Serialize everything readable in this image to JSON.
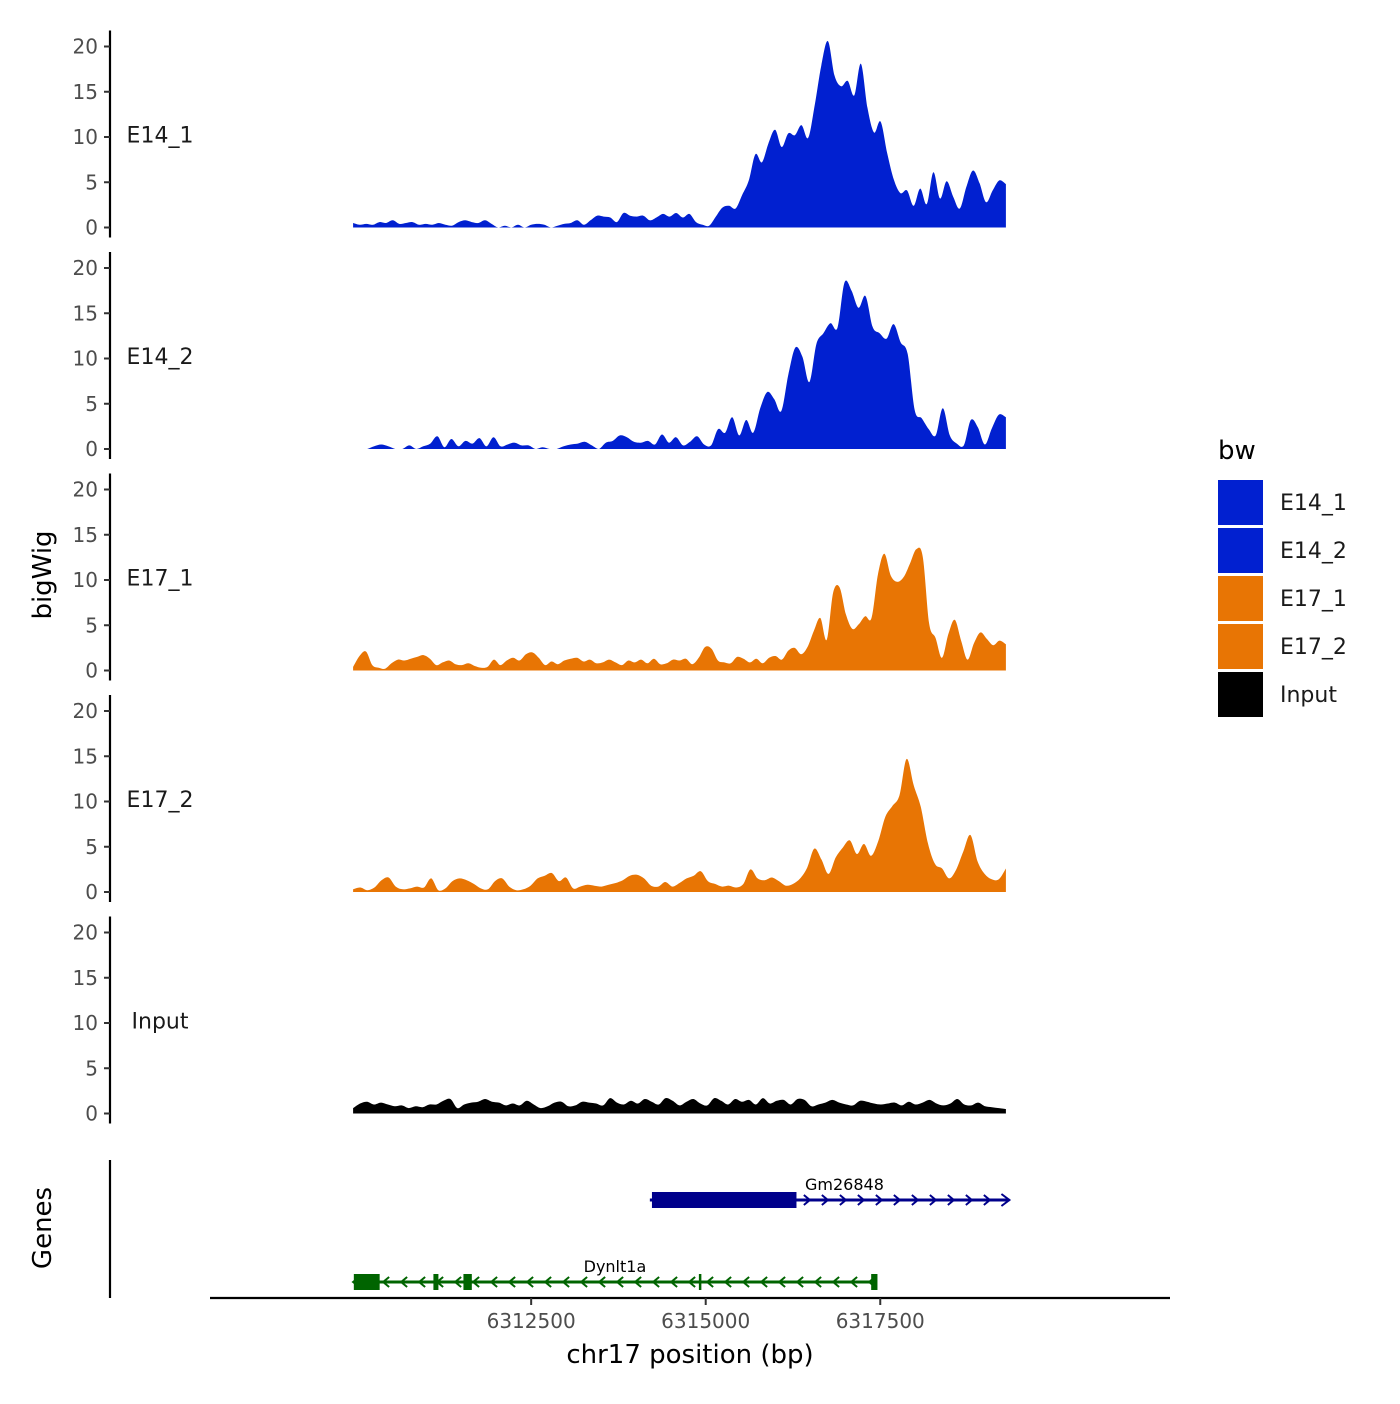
{
  "chart_data": {
    "type": "area",
    "title": "",
    "xlabel": "chr17 position (bp)",
    "ylabel": "bigWig",
    "gene_panel_label": "Genes",
    "x_range": [
      6309950,
      6319300
    ],
    "xlim": [
      6307900,
      6321650
    ],
    "x_ticks": [
      6312500,
      6315000,
      6317500
    ],
    "x_tick_labels": [
      "6312500",
      "6315000",
      "6317500"
    ],
    "ylim": [
      0,
      22
    ],
    "y_ticks": [
      0,
      5,
      10,
      15,
      20
    ],
    "y_tick_labels": [
      "0",
      "5",
      "10",
      "15",
      "20"
    ],
    "legend": {
      "title": "bw",
      "entries": [
        {
          "label": "E14_1",
          "color": "#0120D0"
        },
        {
          "label": "E14_2",
          "color": "#0120D0"
        },
        {
          "label": "E17_1",
          "color": "#E87504"
        },
        {
          "label": "E17_2",
          "color": "#E87504"
        },
        {
          "label": "Input",
          "color": "#000000"
        }
      ]
    },
    "series": [
      {
        "name": "E14_1",
        "label": "E14_1",
        "color": "#0120D0",
        "values": [
          0.5,
          0.3,
          0.4,
          0.3,
          0.6,
          0.5,
          0.8,
          0.4,
          0.5,
          0.6,
          0.3,
          0.4,
          0.3,
          0.5,
          0.3,
          0.2,
          0.6,
          0.8,
          0.6,
          0.5,
          0.8,
          0.4,
          0,
          0.2,
          0,
          0.3,
          0,
          0.3,
          0.4,
          0.3,
          0,
          0.2,
          0.4,
          0.5,
          0.8,
          0.3,
          0.8,
          1.3,
          1.2,
          1.1,
          0.6,
          1.6,
          1.3,
          1.2,
          1.3,
          0.8,
          1.1,
          1.5,
          1.2,
          1.6,
          1.1,
          1.5,
          0.6,
          0.3,
          0.2,
          1.2,
          2.2,
          2.4,
          2.1,
          3.6,
          5.2,
          8.1,
          7.2,
          9.3,
          10.8,
          8.9,
          10.4,
          10.2,
          11.3,
          9.9,
          13.5,
          17.9,
          20.6,
          16.8,
          15.6,
          16.2,
          14.6,
          18.1,
          13.2,
          10.5,
          11.7,
          8.2,
          5.3,
          3.8,
          4.1,
          2.4,
          4.3,
          2.6,
          6.1,
          3.2,
          5.1,
          3.4,
          2.1,
          4.5,
          6.3,
          4.9,
          2.8,
          4.1,
          5.2,
          4.8
        ]
      },
      {
        "name": "E14_2",
        "label": "E14_2",
        "color": "#0120D0",
        "values": [
          0,
          0,
          0,
          0.3,
          0.5,
          0.3,
          0,
          0,
          0.4,
          0,
          0.3,
          0.6,
          1.4,
          0.2,
          1.1,
          0.3,
          0.9,
          0.6,
          1.2,
          0.3,
          1.3,
          0.3,
          0.5,
          0.7,
          0.4,
          0.4,
          0,
          0.2,
          0,
          0,
          0.3,
          0.5,
          0.6,
          0.8,
          0.4,
          0,
          0.7,
          0.9,
          1.5,
          1.3,
          0.8,
          0.7,
          0.9,
          0.5,
          1.6,
          0.7,
          1.3,
          0.4,
          0.8,
          1.4,
          0.5,
          0.4,
          2.2,
          1.8,
          3.5,
          1.5,
          3.2,
          1.8,
          4.5,
          6.3,
          5.5,
          4.2,
          8.2,
          11.2,
          10.2,
          7.4,
          11.6,
          12.8,
          13.9,
          13.4,
          18.4,
          17.5,
          15.6,
          16.9,
          13.5,
          12.8,
          12.2,
          13.8,
          11.8,
          10.5,
          4.3,
          3.4,
          2.2,
          1.5,
          4.5,
          1.5,
          0.6,
          0.4,
          3.2,
          2.4,
          0.5,
          2.3,
          3.8,
          3.5
        ]
      },
      {
        "name": "E17_1",
        "label": "E17_1",
        "color": "#E87504",
        "values": [
          0.4,
          1.6,
          2.1,
          0.6,
          0.3,
          0.2,
          0.8,
          1.2,
          1.1,
          1.3,
          1.5,
          1.7,
          1.3,
          0.6,
          0.9,
          1.1,
          0.7,
          0.6,
          0.8,
          0.5,
          0.3,
          0.4,
          1.2,
          0.6,
          1.1,
          1.4,
          1.1,
          1.8,
          2,
          1.4,
          0.6,
          1,
          0.7,
          1.1,
          1.3,
          1.4,
          1,
          1.2,
          0.8,
          0.9,
          1.2,
          0.9,
          0.6,
          1.1,
          0.9,
          1.2,
          0.8,
          1.3,
          0.7,
          0.8,
          1.2,
          1.1,
          1.3,
          0.7,
          1.4,
          2.6,
          2.4,
          1.1,
          0.9,
          0.8,
          1.5,
          1.3,
          0.9,
          1.3,
          0.8,
          1.4,
          1.6,
          1.2,
          2.2,
          2.5,
          1.8,
          2.6,
          4.4,
          5.8,
          3.4,
          8.6,
          9.2,
          6.2,
          4.6,
          5.1,
          6,
          5.8,
          10.6,
          12.9,
          10.5,
          9.8,
          10.3,
          11.8,
          13.4,
          12.6,
          5.2,
          3.6,
          1.4,
          4,
          5.6,
          3.3,
          1.2,
          3,
          4.2,
          3.5,
          2.8,
          3.3,
          2.9
        ]
      },
      {
        "name": "E17_2",
        "label": "E17_2",
        "color": "#E87504",
        "values": [
          0.3,
          0.5,
          0.2,
          0.5,
          1.3,
          1.6,
          0.6,
          0.3,
          0.4,
          0.6,
          0.5,
          1.5,
          0.2,
          0.4,
          1.2,
          1.5,
          1.3,
          0.9,
          0.4,
          0.3,
          1.2,
          1.5,
          0.6,
          0.2,
          0.3,
          0.7,
          1.5,
          1.8,
          2.1,
          1.2,
          1.6,
          0.4,
          0.6,
          0.8,
          0.7,
          0.6,
          0.8,
          1,
          1.3,
          1.8,
          1.9,
          1.5,
          0.7,
          0.6,
          1.1,
          0.6,
          1,
          1.5,
          1.8,
          2.3,
          1.2,
          0.9,
          0.6,
          0.7,
          0.5,
          0.9,
          2.5,
          1.5,
          1.3,
          1.6,
          1.2,
          0.7,
          0.9,
          1.5,
          2.7,
          4.8,
          3.6,
          2,
          3.8,
          4.9,
          5.7,
          4.2,
          5.3,
          4,
          5.6,
          8.3,
          9.5,
          10.7,
          14.7,
          11.8,
          9.4,
          5.4,
          3.1,
          2.6,
          1.5,
          2.5,
          4.5,
          6.3,
          3.4,
          2,
          1.4,
          1.4,
          2.6
        ]
      },
      {
        "name": "Input",
        "label": "Input",
        "color": "#000000",
        "values": [
          0.6,
          1.1,
          1.3,
          1,
          1.2,
          1,
          0.8,
          0.9,
          0.6,
          0.8,
          0.7,
          1,
          1,
          1.4,
          1.6,
          0.6,
          1,
          1.2,
          1.3,
          1.6,
          1.3,
          1.2,
          0.9,
          1.1,
          0.9,
          1.4,
          1,
          0.6,
          0.8,
          1.2,
          1.3,
          0.8,
          0.9,
          1.3,
          1.2,
          1.1,
          0.9,
          1.7,
          1.2,
          1,
          1.4,
          1.1,
          1.6,
          1.3,
          1,
          1.7,
          1.4,
          0.9,
          1.3,
          1.6,
          1.1,
          0.9,
          1.7,
          1.4,
          1,
          1.6,
          1.3,
          1.5,
          1,
          1.7,
          1.1,
          1.4,
          1.5,
          1,
          1.6,
          1.5,
          0.8,
          1,
          1.2,
          1.5,
          1.2,
          1,
          0.9,
          1.4,
          1.3,
          1.1,
          1,
          1.1,
          1.2,
          0.9,
          1.3,
          1,
          1.2,
          1.5,
          1.1,
          0.9,
          1.1,
          1.6,
          1,
          0.9,
          1.2,
          0.8,
          0.7,
          0.6,
          0.5
        ]
      }
    ],
    "genes": [
      {
        "name": "Gm26848",
        "color": "#00008B",
        "strand": "+",
        "start": 6314200,
        "end": 6319350,
        "exons": [
          [
            6314230,
            6316300
          ]
        ]
      },
      {
        "name": "Dynlt1a",
        "color": "#006400",
        "strand": "-",
        "start": 6309950,
        "end": 6317450,
        "exons": [
          [
            6309960,
            6310330
          ],
          [
            6311100,
            6311170
          ],
          [
            6311530,
            6311650
          ],
          [
            6317370,
            6317460
          ]
        ],
        "marks": [
          6314920
        ]
      }
    ]
  }
}
